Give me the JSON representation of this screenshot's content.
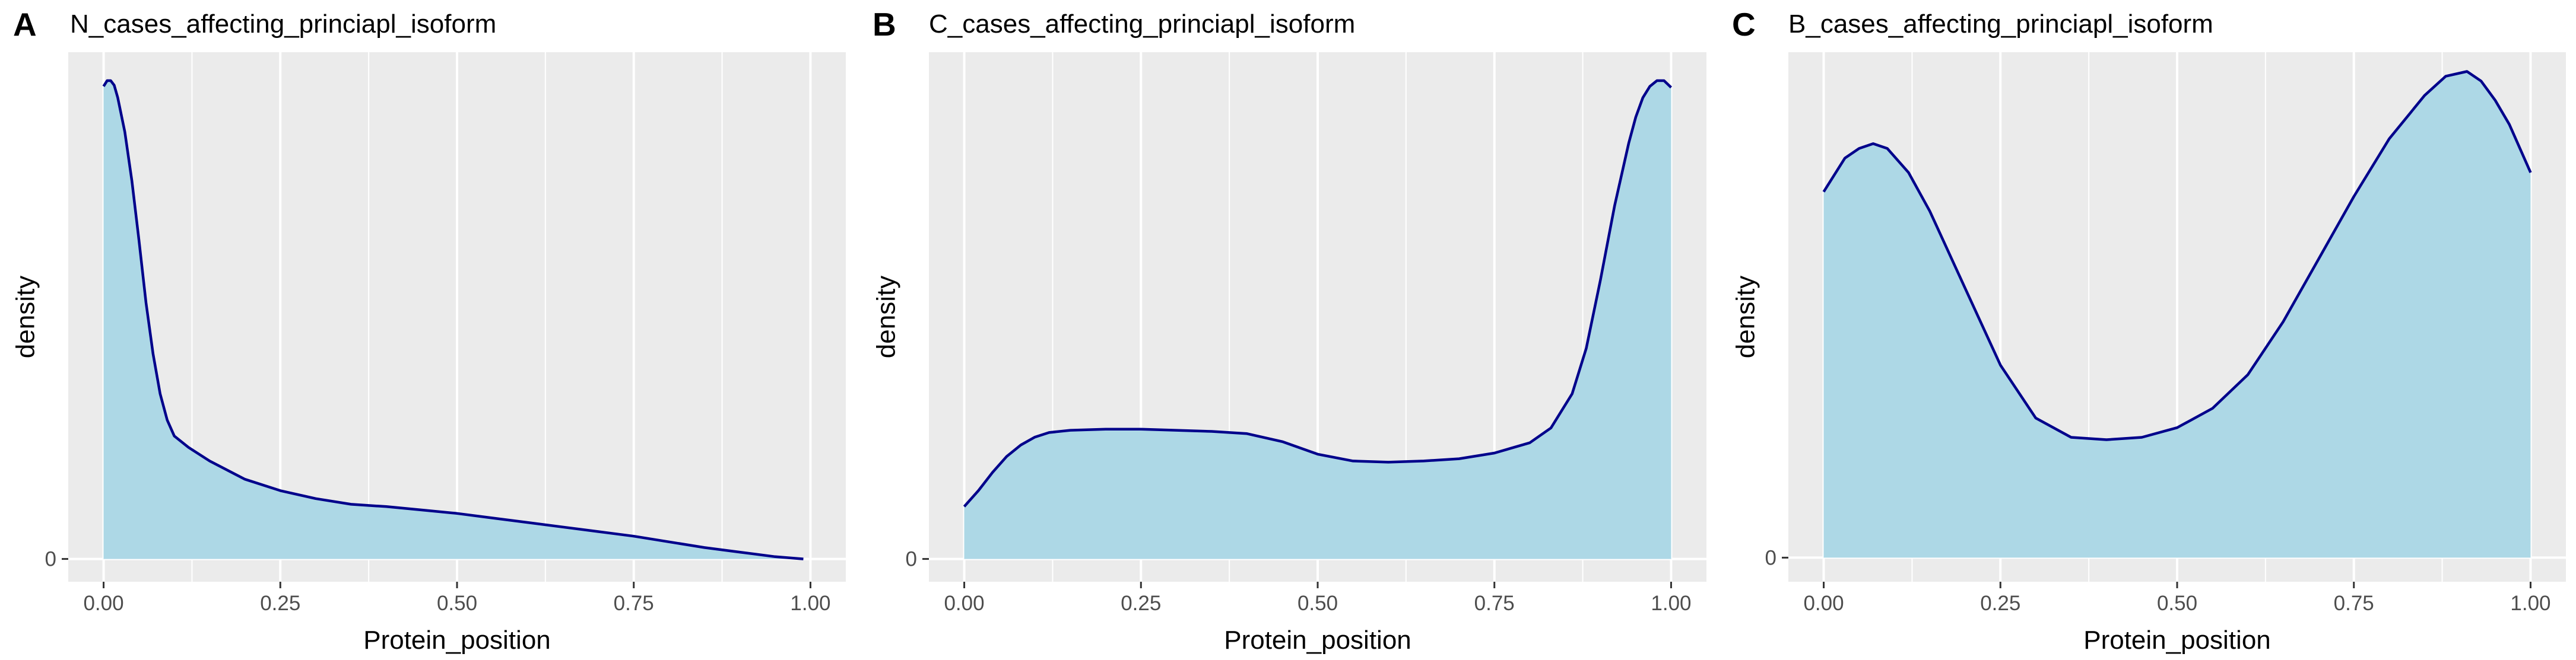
{
  "colors": {
    "panel_background": "#ebebeb",
    "grid_line": "#ffffff",
    "density_fill": "#add8e6",
    "density_line": "#00008b",
    "tick_text": "#4d4d4d"
  },
  "chart_data": [
    {
      "type": "area",
      "tag": "A",
      "title": "N_cases_affecting_princiapl_isoform",
      "xlabel": "Protein_position",
      "ylabel": "density",
      "xlim": [
        -0.05,
        1.05
      ],
      "ylim": [
        -0.2,
        4.45
      ],
      "x_ticks": [
        0,
        0.25,
        0.5,
        0.75,
        1
      ],
      "x_tick_labels": [
        "0.00",
        "0.25",
        "0.50",
        "0.75",
        "1.00"
      ],
      "y_ticks": [
        0
      ],
      "y_tick_labels": [
        "0"
      ],
      "grid": true,
      "x": [
        0.0,
        0.005,
        0.01,
        0.015,
        0.02,
        0.03,
        0.04,
        0.05,
        0.06,
        0.07,
        0.08,
        0.09,
        0.1,
        0.12,
        0.15,
        0.2,
        0.25,
        0.3,
        0.35,
        0.4,
        0.45,
        0.5,
        0.55,
        0.6,
        0.65,
        0.7,
        0.75,
        0.8,
        0.85,
        0.9,
        0.95,
        0.99
      ],
      "y": [
        4.15,
        4.2,
        4.2,
        4.16,
        4.05,
        3.75,
        3.32,
        2.8,
        2.25,
        1.8,
        1.45,
        1.22,
        1.08,
        0.98,
        0.86,
        0.7,
        0.6,
        0.53,
        0.48,
        0.46,
        0.43,
        0.4,
        0.36,
        0.32,
        0.28,
        0.24,
        0.2,
        0.15,
        0.1,
        0.06,
        0.02,
        0.0
      ]
    },
    {
      "type": "area",
      "tag": "B",
      "title": "C_cases_affecting_princiapl_isoform",
      "xlabel": "Protein_position",
      "ylabel": "density",
      "xlim": [
        -0.05,
        1.05
      ],
      "ylim": [
        -0.2,
        4.45
      ],
      "x_ticks": [
        0,
        0.25,
        0.5,
        0.75,
        1
      ],
      "x_tick_labels": [
        "0.00",
        "0.25",
        "0.50",
        "0.75",
        "1.00"
      ],
      "y_ticks": [
        0
      ],
      "y_tick_labels": [
        "0"
      ],
      "grid": true,
      "x": [
        0.0,
        0.02,
        0.04,
        0.06,
        0.08,
        0.1,
        0.12,
        0.15,
        0.2,
        0.25,
        0.3,
        0.35,
        0.4,
        0.45,
        0.5,
        0.55,
        0.6,
        0.65,
        0.7,
        0.75,
        0.8,
        0.83,
        0.86,
        0.88,
        0.9,
        0.92,
        0.94,
        0.95,
        0.96,
        0.97,
        0.98,
        0.99,
        1.0
      ],
      "y": [
        0.46,
        0.6,
        0.76,
        0.9,
        1.0,
        1.07,
        1.11,
        1.13,
        1.14,
        1.14,
        1.13,
        1.12,
        1.1,
        1.03,
        0.92,
        0.86,
        0.85,
        0.86,
        0.88,
        0.93,
        1.02,
        1.15,
        1.45,
        1.85,
        2.45,
        3.1,
        3.65,
        3.88,
        4.05,
        4.15,
        4.2,
        4.2,
        4.14
      ]
    },
    {
      "type": "area",
      "tag": "C",
      "title": "B_cases_affecting_princiapl_isoform",
      "xlabel": "Protein_position",
      "ylabel": "density",
      "xlim": [
        -0.05,
        1.05
      ],
      "ylim": [
        -0.05,
        1.05
      ],
      "x_ticks": [
        0,
        0.25,
        0.5,
        0.75,
        1
      ],
      "x_tick_labels": [
        "0.00",
        "0.25",
        "0.50",
        "0.75",
        "1.00"
      ],
      "y_ticks": [
        0
      ],
      "y_tick_labels": [
        "0"
      ],
      "grid": true,
      "x": [
        0.0,
        0.03,
        0.05,
        0.07,
        0.09,
        0.12,
        0.15,
        0.2,
        0.25,
        0.3,
        0.35,
        0.4,
        0.45,
        0.5,
        0.55,
        0.6,
        0.65,
        0.7,
        0.75,
        0.8,
        0.85,
        0.88,
        0.91,
        0.93,
        0.95,
        0.97,
        1.0
      ],
      "y": [
        0.76,
        0.83,
        0.85,
        0.86,
        0.85,
        0.8,
        0.72,
        0.56,
        0.4,
        0.29,
        0.25,
        0.245,
        0.25,
        0.27,
        0.31,
        0.38,
        0.49,
        0.62,
        0.75,
        0.87,
        0.96,
        1.0,
        1.01,
        0.99,
        0.95,
        0.9,
        0.8
      ]
    }
  ]
}
